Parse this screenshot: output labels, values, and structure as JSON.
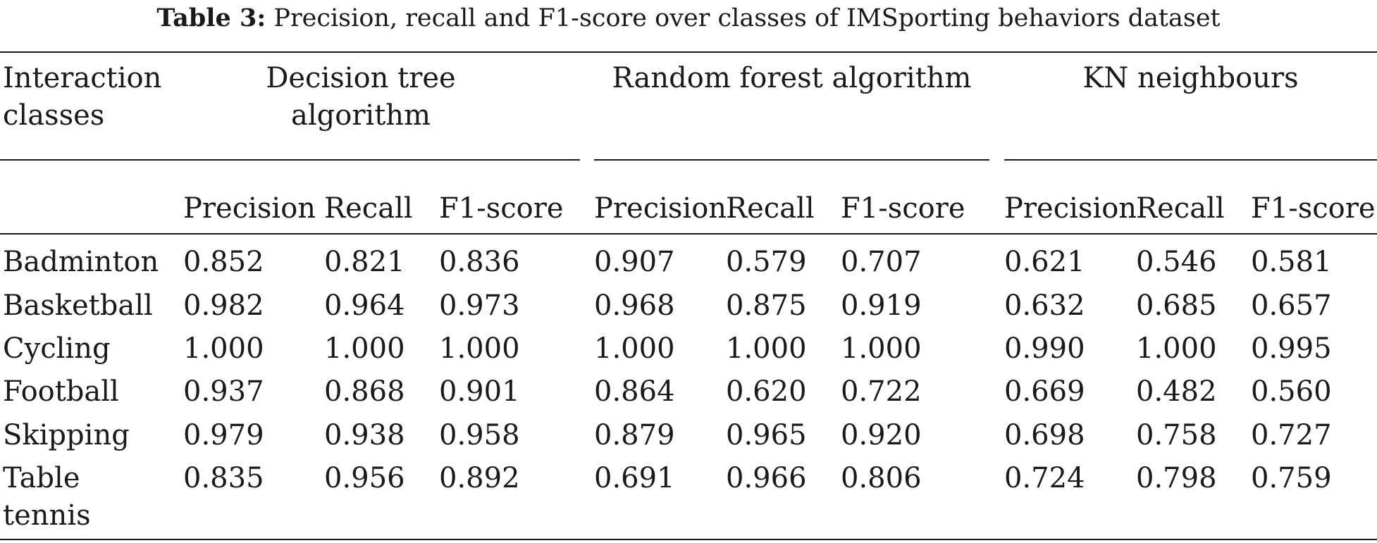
{
  "caption": {
    "label": "Table 3:",
    "text": "Precision, recall and F1-score over classes of IMSporting behaviors dataset"
  },
  "table": {
    "row_header_title": [
      "Interaction",
      "classes"
    ],
    "groups": [
      {
        "name_lines": [
          "Decision tree",
          "algorithm"
        ]
      },
      {
        "name_lines": [
          "Random forest algorithm"
        ]
      },
      {
        "name_lines": [
          "KN neighbours"
        ]
      }
    ],
    "metrics": [
      "Precision",
      "Recall",
      "F1-score"
    ],
    "rows": [
      {
        "class_lines": [
          "Badminton"
        ],
        "values": [
          "0.852",
          "0.821",
          "0.836",
          "0.907",
          "0.579",
          "0.707",
          "0.621",
          "0.546",
          "0.581"
        ]
      },
      {
        "class_lines": [
          "Basketball"
        ],
        "values": [
          "0.982",
          "0.964",
          "0.973",
          "0.968",
          "0.875",
          "0.919",
          "0.632",
          "0.685",
          "0.657"
        ]
      },
      {
        "class_lines": [
          "Cycling"
        ],
        "values": [
          "1.000",
          "1.000",
          "1.000",
          "1.000",
          "1.000",
          "1.000",
          "0.990",
          "1.000",
          "0.995"
        ]
      },
      {
        "class_lines": [
          "Football"
        ],
        "values": [
          "0.937",
          "0.868",
          "0.901",
          "0.864",
          "0.620",
          "0.722",
          "0.669",
          "0.482",
          "0.560"
        ]
      },
      {
        "class_lines": [
          "Skipping"
        ],
        "values": [
          "0.979",
          "0.938",
          "0.958",
          "0.879",
          "0.965",
          "0.920",
          "0.698",
          "0.758",
          "0.727"
        ]
      },
      {
        "class_lines": [
          "Table",
          "tennis"
        ],
        "values": [
          "0.835",
          "0.956",
          "0.892",
          "0.691",
          "0.966",
          "0.806",
          "0.724",
          "0.798",
          "0.759"
        ]
      }
    ]
  }
}
